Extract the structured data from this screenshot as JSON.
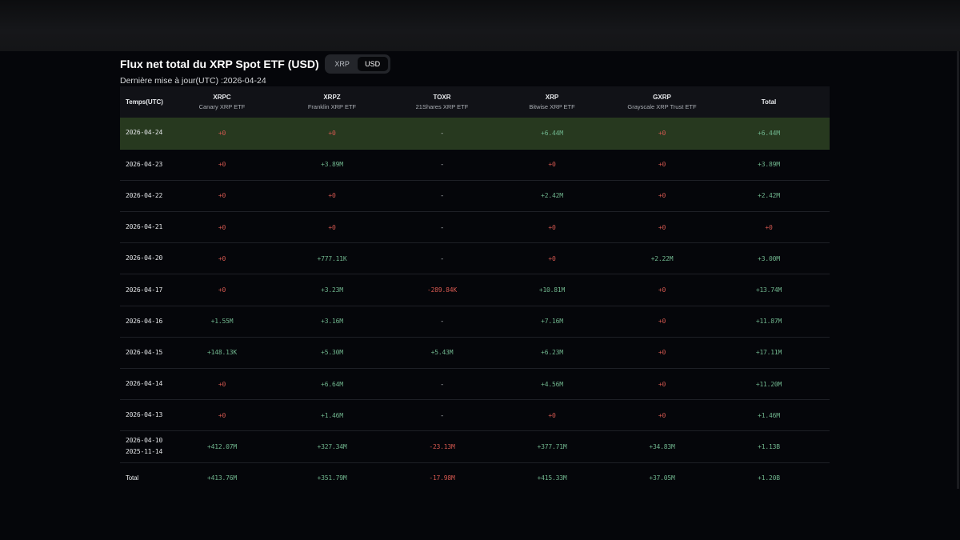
{
  "header": {
    "title": "Flux net total du XRP Spot ETF (USD)",
    "updated": "Dernière mise à jour(UTC) :2026-04-24",
    "toggle": {
      "options": [
        "XRP",
        "USD"
      ],
      "active": "USD"
    }
  },
  "table": {
    "columns": [
      {
        "ticker": "Temps(UTC)",
        "name": ""
      },
      {
        "ticker": "XRPC",
        "name": "Canary XRP ETF"
      },
      {
        "ticker": "XRPZ",
        "name": "Franklin XRP ETF"
      },
      {
        "ticker": "TOXR",
        "name": "21Shares XRP ETF"
      },
      {
        "ticker": "XRP",
        "name": "Bitwise XRP ETF"
      },
      {
        "ticker": "GXRP",
        "name": "Grayscale XRP Trust ETF"
      },
      {
        "ticker": "Total",
        "name": ""
      }
    ],
    "rows": [
      {
        "date": "2026-04-24",
        "date2": "",
        "highlight": true,
        "cells": [
          "+0",
          "+0",
          "-",
          "+6.44M",
          "+0",
          "+6.44M"
        ]
      },
      {
        "date": "2026-04-23",
        "date2": "",
        "highlight": false,
        "cells": [
          "+0",
          "+3.89M",
          "-",
          "+0",
          "+0",
          "+3.89M"
        ]
      },
      {
        "date": "2026-04-22",
        "date2": "",
        "highlight": false,
        "cells": [
          "+0",
          "+0",
          "-",
          "+2.42M",
          "+0",
          "+2.42M"
        ]
      },
      {
        "date": "2026-04-21",
        "date2": "",
        "highlight": false,
        "cells": [
          "+0",
          "+0",
          "-",
          "+0",
          "+0",
          "+0"
        ]
      },
      {
        "date": "2026-04-20",
        "date2": "",
        "highlight": false,
        "cells": [
          "+0",
          "+777.11K",
          "-",
          "+0",
          "+2.22M",
          "+3.00M"
        ]
      },
      {
        "date": "2026-04-17",
        "date2": "",
        "highlight": false,
        "cells": [
          "+0",
          "+3.23M",
          "-289.84K",
          "+10.81M",
          "+0",
          "+13.74M"
        ]
      },
      {
        "date": "2026-04-16",
        "date2": "",
        "highlight": false,
        "cells": [
          "+1.55M",
          "+3.16M",
          "-",
          "+7.16M",
          "+0",
          "+11.87M"
        ]
      },
      {
        "date": "2026-04-15",
        "date2": "",
        "highlight": false,
        "cells": [
          "+148.13K",
          "+5.30M",
          "+5.43M",
          "+6.23M",
          "+0",
          "+17.11M"
        ]
      },
      {
        "date": "2026-04-14",
        "date2": "",
        "highlight": false,
        "cells": [
          "+0",
          "+6.64M",
          "-",
          "+4.56M",
          "+0",
          "+11.20M"
        ]
      },
      {
        "date": "2026-04-13",
        "date2": "",
        "highlight": false,
        "cells": [
          "+0",
          "+1.46M",
          "-",
          "+0",
          "+0",
          "+1.46M"
        ]
      },
      {
        "date": "2026-04-10",
        "date2": "2025-11-14",
        "highlight": false,
        "cells": [
          "+412.07M",
          "+327.34M",
          "-23.13M",
          "+377.71M",
          "+34.83M",
          "+1.13B"
        ]
      },
      {
        "date": "Total",
        "date2": "",
        "highlight": false,
        "cells": [
          "+413.76M",
          "+351.79M",
          "-17.98M",
          "+415.33M",
          "+37.05M",
          "+1.20B"
        ]
      }
    ]
  },
  "colors": {
    "positive": "#6fb48d",
    "negative": "#d2574f",
    "highlight_row": "#27391f",
    "background": "#05060a",
    "header_bg": "#111217"
  }
}
